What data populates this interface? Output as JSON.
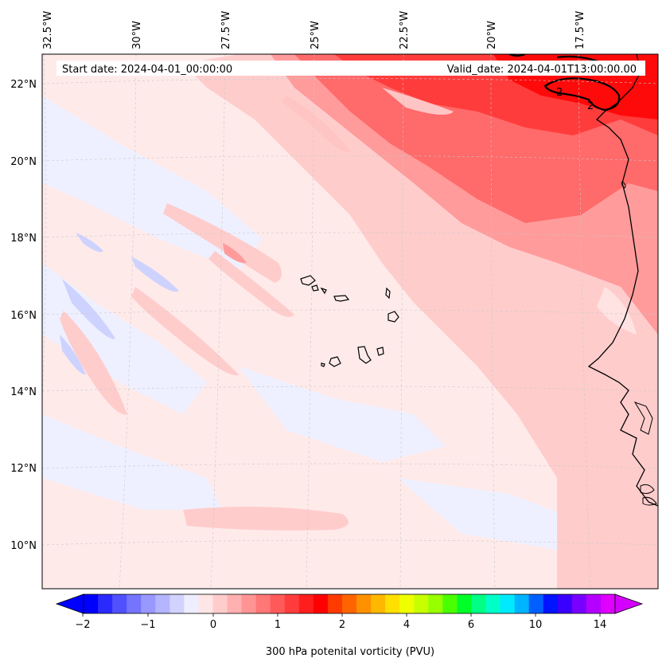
{
  "map": {
    "start_date": "Start date: 2024-04-01_00:00:00",
    "valid_date": "Valid_date: 2024-04-01T13:00:00.00",
    "lon_labels": [
      "32.5°W",
      "30°W",
      "27.5°W",
      "25°W",
      "22.5°W",
      "20°W",
      "17.5°W"
    ],
    "lat_labels": [
      "22°N",
      "20°N",
      "18°N",
      "16°N",
      "14°N",
      "12°N",
      "10°N"
    ],
    "contour_label": "2",
    "gridlines": "on",
    "colors": {
      "land_outline": "#000000",
      "neg_fill": "#e8eaff",
      "neg_stronger": "#c8cdff",
      "low_pos": "#ffe3e3",
      "mid_pos": "#ffc9c9",
      "pos_2": "#ff9b9b",
      "pos_3": "#ff6a6a",
      "pos_4": "#ff3030",
      "pos_5": "#ff0a0a"
    }
  },
  "colorbar": {
    "label": "300 hPa potenital vorticity (PVU)",
    "ticks": [
      "−2",
      "−1",
      "0",
      "1",
      "2",
      "4",
      "6",
      "10",
      "14"
    ],
    "colors": [
      "#0000ff",
      "#2a2aff",
      "#5050ff",
      "#7474ff",
      "#9898ff",
      "#b4b4ff",
      "#d2d2ff",
      "#eeeeff",
      "#ffe6e6",
      "#ffcccc",
      "#ffb0b0",
      "#ff9494",
      "#ff7777",
      "#ff5a5a",
      "#ff3c3c",
      "#ff1e1e",
      "#ff0000",
      "#ff3a00",
      "#ff6400",
      "#ff9000",
      "#ffb800",
      "#ffe000",
      "#f0ff00",
      "#c8ff00",
      "#96ff00",
      "#4aff00",
      "#00ff28",
      "#00ff84",
      "#00ffc8",
      "#00eaff",
      "#00b4ff",
      "#0060ff",
      "#0014ff",
      "#3a00ff",
      "#7800ff",
      "#b400ff",
      "#e000ff"
    ]
  }
}
